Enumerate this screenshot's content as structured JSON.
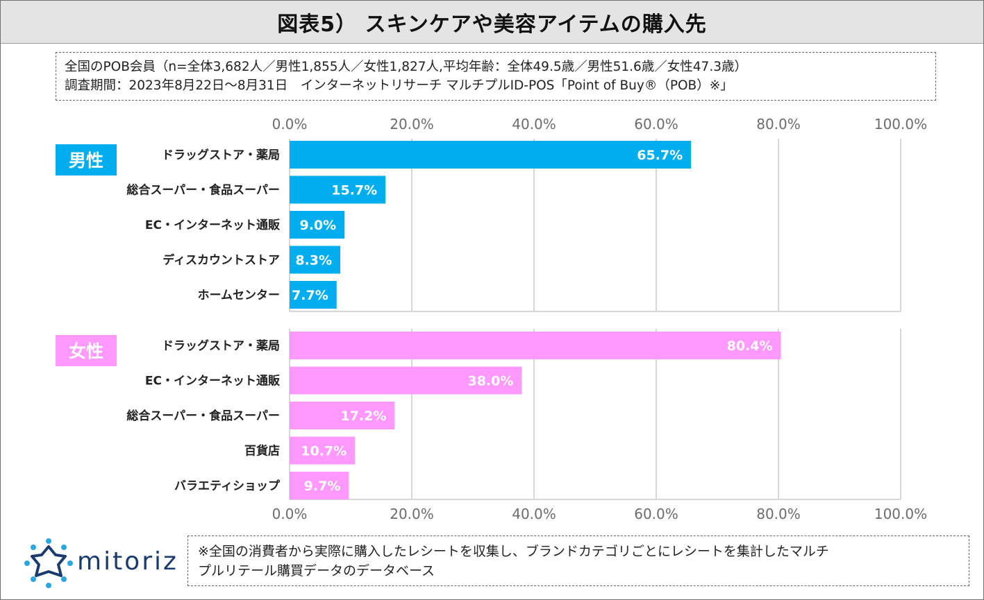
{
  "header": {
    "title": "図表5） スキンケアや美容アイテムの購入先"
  },
  "info": {
    "line1": "全国のPOB会員（n=全体3,682人／男性1,855人／女性1,827人,平均年齢：全体49.5歳／男性51.6歳／女性47.3歳）",
    "line2": "調査期間：2023年8月22日～8月31日　インターネットリサーチ マルチプルID-POS「Point of Buy®（POB）※」"
  },
  "chart_data": {
    "type": "bar",
    "orientation": "horizontal",
    "xlim": [
      0,
      100
    ],
    "ticks": [
      "0.0%",
      "20.0%",
      "40.0%",
      "60.0%",
      "80.0%",
      "100.0%"
    ],
    "tick_values": [
      0,
      20,
      40,
      60,
      80,
      100
    ],
    "grid": true,
    "panels": [
      {
        "label": "男性",
        "color": "#00aeef",
        "label_text_color": "#ffffff",
        "value_text_color": "#ffffff",
        "categories": [
          "ドラッグストア・薬局",
          "総合スーパー・食品スーパー",
          "EC・インターネット通販",
          "ディスカウントストア",
          "ホームセンター"
        ],
        "values": [
          65.7,
          15.7,
          9.0,
          8.3,
          7.7
        ],
        "value_labels": [
          "65.7%",
          "15.7%",
          "9.0%",
          "8.3%",
          "7.7%"
        ]
      },
      {
        "label": "女性",
        "color": "#ff99ff",
        "label_text_color": "#ffffff",
        "value_text_color": "#ffffff",
        "categories": [
          "ドラッグストア・薬局",
          "EC・インターネット通販",
          "総合スーパー・食品スーパー",
          "百貨店",
          "バラエティショップ"
        ],
        "values": [
          80.4,
          38.0,
          17.2,
          10.7,
          9.7
        ],
        "value_labels": [
          "80.4%",
          "38.0%",
          "17.2%",
          "10.7%",
          "9.7%"
        ]
      }
    ]
  },
  "footer": {
    "logo_text": "mitoriz",
    "logo_color": "#1b3b6f",
    "note_line1": "※全国の消費者から実際に購入したレシートを収集し、ブランドカテゴリごとにレシートを集計したマルチ",
    "note_line2": "プルリテール購買データのデータベース"
  }
}
